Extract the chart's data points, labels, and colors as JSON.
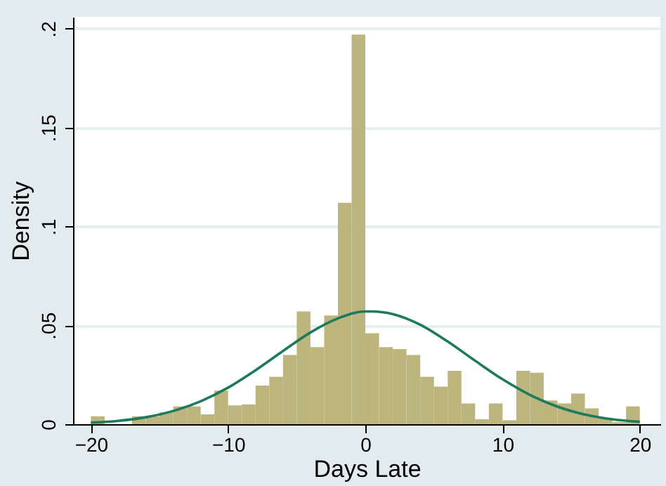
{
  "chart_data": {
    "type": "histogram",
    "xlabel": "Days Late",
    "ylabel": "Density",
    "xlim": [
      -21.3,
      21.5
    ],
    "ylim": [
      0,
      0.206
    ],
    "xticks": [
      {
        "value": -20,
        "label": "−20"
      },
      {
        "value": -10,
        "label": "−10"
      },
      0,
      10,
      20
    ],
    "yticks": [
      0,
      {
        "value": 0.05,
        "label": ".05"
      },
      {
        "value": 0.1,
        "label": ".1"
      },
      {
        "value": 0.15,
        "label": ".15"
      },
      {
        "value": 0.2,
        "label": ".2"
      }
    ],
    "grid": "y",
    "series": [
      {
        "color": "#bcb57e",
        "bins": [
          -20,
          -19,
          -18,
          -17,
          -16,
          -15,
          -14,
          -13,
          -12,
          -11,
          -10,
          -9,
          -8,
          -7,
          -6,
          -5,
          -4,
          -3,
          -2,
          -1,
          0,
          1,
          2,
          3,
          4,
          5,
          6,
          7,
          8,
          9,
          10,
          11,
          12,
          13,
          14,
          15,
          16,
          17,
          18,
          19,
          20
        ],
        "values": [
          0.004,
          0,
          0,
          0.004,
          0.004,
          0.006,
          0.009,
          0.009,
          0.005,
          0.017,
          0.0095,
          0.01,
          0.0195,
          0.024,
          0.035,
          0.057,
          0.039,
          0.055,
          0.112,
          0.197,
          0.046,
          0.039,
          0.038,
          0.035,
          0.024,
          0.019,
          0.027,
          0.0105,
          0.0025,
          0.0105,
          0.002,
          0.027,
          0.026,
          0.012,
          0.0105,
          0.0155,
          0.008,
          0.003,
          0.001,
          0.009
        ]
      },
      {
        "type": "line",
        "color": "#1e7a5c",
        "x": [
          -20,
          -18,
          -16,
          -14,
          -12,
          -10,
          -8,
          -6,
          -4,
          -2,
          0,
          0.5,
          2,
          4,
          6,
          8,
          10,
          12,
          14,
          16,
          18,
          20
        ],
        "values": [
          0.0008,
          0.0017,
          0.0035,
          0.0067,
          0.0116,
          0.0185,
          0.0273,
          0.037,
          0.0464,
          0.0535,
          0.057,
          0.057,
          0.0557,
          0.0503,
          0.0418,
          0.0321,
          0.0227,
          0.0148,
          0.0089,
          0.0049,
          0.0025,
          0.0012
        ]
      }
    ]
  }
}
